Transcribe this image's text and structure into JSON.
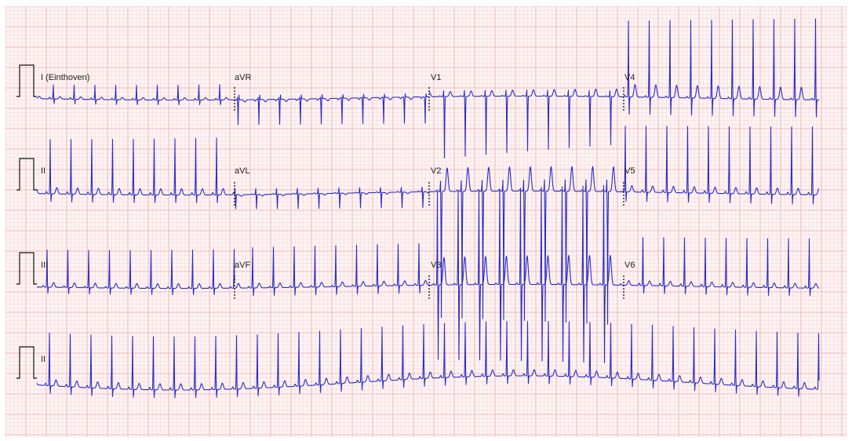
{
  "colors": {
    "paper": "#fdf4f4",
    "grid_minor": "#f6d4d4",
    "grid_major": "#eaa9a9",
    "trace": "#2b2bc8",
    "calibration": "#111111",
    "label": "#222222"
  },
  "leads": {
    "row1": [
      "I (Einthoven)",
      "aVR",
      "V1",
      "V4"
    ],
    "row2": [
      "II",
      "aVL",
      "V2",
      "V5"
    ],
    "row3": [
      "III",
      "aVF",
      "V3",
      "V6"
    ],
    "rhythm": "II"
  }
}
